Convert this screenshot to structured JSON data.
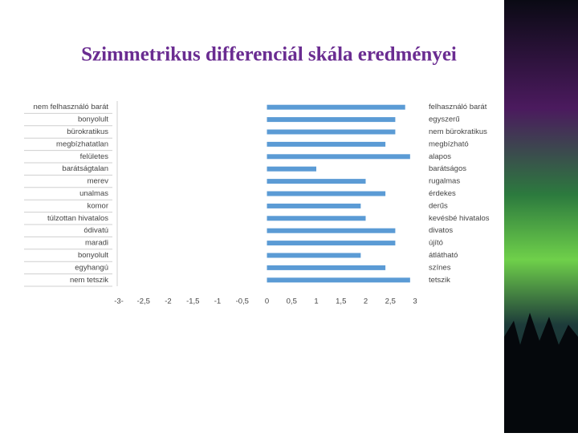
{
  "chart_data": {
    "type": "bar",
    "orientation": "horizontal",
    "title": "Szimmetrikus differenciál skála eredményei",
    "categories": [
      "nem felhasználó barát",
      "bonyolult",
      "bürokratikus",
      "megbízhatatlan",
      "felületes",
      "barátságtalan",
      "merev",
      "unalmas",
      "komor",
      "túlzottan hivatalos",
      "ódivatú",
      "maradi",
      "bonyolult",
      "egyhangú",
      "nem tetszik"
    ],
    "right_labels": [
      "felhasználó barát",
      "egyszerű",
      "nem bürokratikus",
      "megbízható",
      "alapos",
      "barátságos",
      "rugalmas",
      "érdekes",
      "derűs",
      "kevésbé hivatalos",
      "divatos",
      "újító",
      "átlátható",
      "színes",
      "tetszik"
    ],
    "values": [
      2.8,
      2.6,
      2.6,
      2.4,
      2.9,
      1,
      2,
      2.4,
      1.9,
      2,
      2.6,
      2.6,
      1.9,
      2.4,
      2.9
    ],
    "color": "#5b9bd5",
    "xlim": [
      -3,
      3
    ],
    "xticks": [
      {
        "value": -3,
        "label": "-3-"
      },
      {
        "value": -2.5,
        "label": "-2,5"
      },
      -2,
      {
        "value": -1.5,
        "label": "-1,5"
      },
      -1,
      {
        "value": -0.5,
        "label": "-0,5"
      },
      0,
      {
        "value": 0.5,
        "label": "0,5"
      },
      1,
      {
        "value": 1.5,
        "label": "1,5"
      },
      2,
      {
        "value": 2.5,
        "label": "2,5"
      },
      3
    ],
    "grid": false
  }
}
